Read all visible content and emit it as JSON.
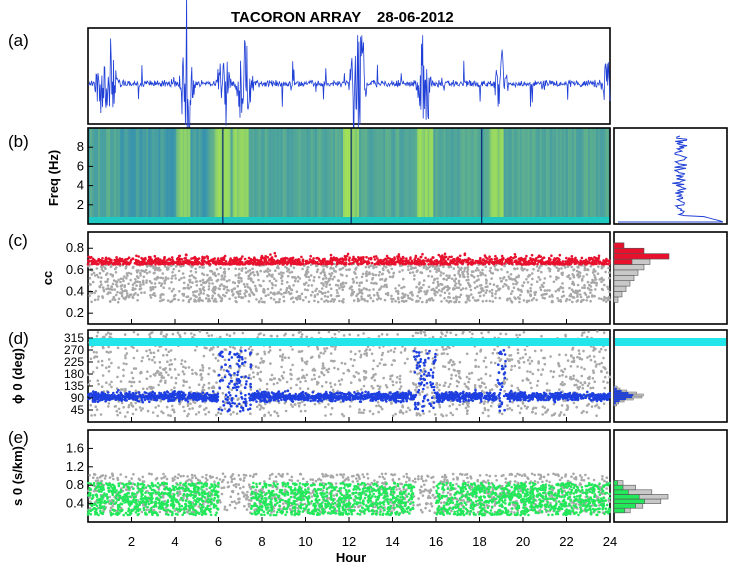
{
  "figure": {
    "title_station": "TACORON ARRAY",
    "title_date": "28-06-2012",
    "xlabel": "Hour",
    "x_ticks": [
      "2",
      "4",
      "6",
      "8",
      "10",
      "12",
      "14",
      "16",
      "18",
      "20",
      "22",
      "24"
    ]
  },
  "colors": {
    "waveform": "#1f3fd6",
    "cc_high": "#e8112d",
    "gray_points": "#a8a8a8",
    "backazimuth_selected": "#1e3fe0",
    "slowness_selected": "#22e85a",
    "cyan_band": "#22e6ea"
  },
  "chart_data": [
    {
      "panel": "(a)",
      "type": "line",
      "title": "",
      "xlabel": "",
      "ylabel": "",
      "xlim": [
        0,
        24
      ],
      "description_series": "seismic waveform trace",
      "burst_hours": [
        0.6,
        1.1,
        4.5,
        4.6,
        6.3,
        7.1,
        7.3,
        12.3,
        12.5,
        15.4,
        15.6,
        19.0,
        23.9
      ]
    },
    {
      "panel": "(b)",
      "type": "heatmap",
      "title": "",
      "xlabel": "",
      "ylabel": "Freq (Hz)",
      "xlim": [
        0,
        24
      ],
      "ylim": [
        0,
        10
      ],
      "y_ticks": [
        "2",
        "4",
        "6",
        "8"
      ],
      "bright_bands_hours": [
        4.4,
        6.2,
        7.0,
        12.1,
        15.5,
        18.8
      ],
      "side_spectrum_type": "line"
    },
    {
      "panel": "(c)",
      "type": "scatter",
      "title": "",
      "xlabel": "",
      "ylabel": "cc",
      "xlim": [
        0,
        24
      ],
      "ylim": [
        0.1,
        0.95
      ],
      "y_ticks": [
        "0.2",
        "0.4",
        "0.6",
        "0.8"
      ],
      "series": [
        {
          "name": "",
          "color_key": "gray_points",
          "y_range": [
            0.3,
            0.65
          ]
        },
        {
          "name": "",
          "color_key": "cc_high",
          "y_range": [
            0.65,
            0.82
          ]
        }
      ],
      "histogram": {
        "orientation": "horizontal",
        "bins": [
          0.3,
          0.35,
          0.4,
          0.45,
          0.5,
          0.55,
          0.6,
          0.65,
          0.7,
          0.75,
          0.8
        ],
        "gray": [
          4,
          8,
          12,
          16,
          20,
          24,
          30,
          36,
          0,
          0,
          0
        ],
        "red": [
          0,
          0,
          0,
          0,
          0,
          0,
          0,
          18,
          55,
          30,
          10
        ]
      }
    },
    {
      "panel": "(d)",
      "type": "scatter",
      "title": "",
      "xlabel": "",
      "ylabel": "ϕ 0 (deg)",
      "xlim": [
        0,
        24
      ],
      "ylim": [
        0,
        345
      ],
      "y_ticks": [
        "45",
        "90",
        "135",
        "180",
        "225",
        "270",
        "315"
      ],
      "cyan_band_deg": 300,
      "series": [
        {
          "name": "",
          "color_key": "gray_points",
          "y_range": [
            20,
            340
          ]
        },
        {
          "name": "",
          "color_key": "backazimuth_selected",
          "y_center": 95
        }
      ],
      "histogram": {
        "orientation": "horizontal",
        "peak_deg": 95
      }
    },
    {
      "panel": "(e)",
      "type": "scatter",
      "title": "",
      "xlabel": "Hour",
      "ylabel": "s 0 (s/km)",
      "xlim": [
        0,
        24
      ],
      "ylim": [
        0,
        2.0
      ],
      "y_ticks": [
        "0.4",
        "0.8",
        "1.2",
        "1.6"
      ],
      "series": [
        {
          "name": "",
          "color_key": "gray_points",
          "y_range": [
            0.2,
            1.05
          ]
        },
        {
          "name": "",
          "color_key": "slowness_selected",
          "y_range": [
            0.15,
            0.85
          ]
        }
      ],
      "histogram": {
        "orientation": "horizontal",
        "bins": [
          0.2,
          0.3,
          0.4,
          0.5,
          0.6,
          0.7,
          0.8
        ],
        "gray": [
          18,
          32,
          52,
          60,
          42,
          24,
          10
        ],
        "green": [
          12,
          24,
          34,
          28,
          16,
          10,
          4
        ]
      }
    }
  ]
}
